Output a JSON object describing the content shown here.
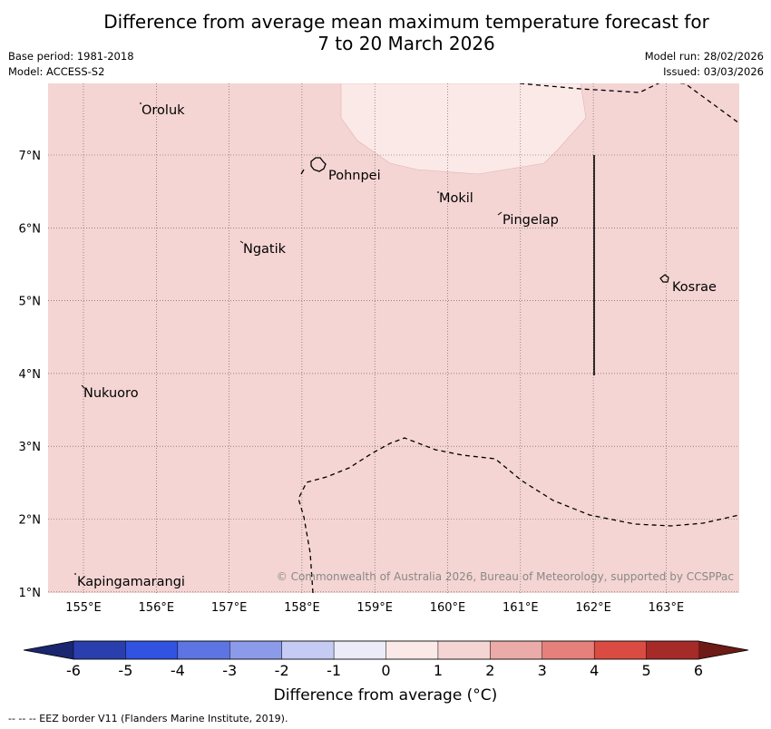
{
  "title": {
    "line1": "Difference from average mean maximum temperature forecast for",
    "line2": "7 to 20 March 2026"
  },
  "meta": {
    "base_period": "Base period: 1981-2018",
    "model": "Model: ACCESS-S2",
    "model_run": "Model run: 28/02/2026",
    "issued": "Issued: 03/03/2026"
  },
  "map": {
    "background_category": "1 to 2",
    "background_color": "#f4d5d3",
    "north_patch_category": "0 to 1",
    "north_patch_color": "#fbe9e8",
    "lon_labels": [
      "155°E",
      "156°E",
      "157°E",
      "158°E",
      "159°E",
      "160°E",
      "161°E",
      "162°E",
      "163°E"
    ],
    "lat_labels": [
      "7°N",
      "6°N",
      "5°N",
      "4°N",
      "3°N",
      "2°N",
      "1°N"
    ],
    "places": [
      {
        "id": "oroluk",
        "name": "Oroluk"
      },
      {
        "id": "pohnpei",
        "name": "Pohnpei"
      },
      {
        "id": "mokil",
        "name": "Mokil"
      },
      {
        "id": "pingelap",
        "name": "Pingelap"
      },
      {
        "id": "ngatik",
        "name": "Ngatik"
      },
      {
        "id": "kosrae",
        "name": "Kosrae"
      },
      {
        "id": "nukuoro",
        "name": "Nukuoro"
      },
      {
        "id": "kapingamarangi",
        "name": "Kapingamarangi"
      }
    ],
    "copyright": "© Commonwealth of Australia 2026, Bureau of Meteorology, supported by CCSPPac"
  },
  "colorbar": {
    "labels": [
      "-6",
      "-5",
      "-4",
      "-3",
      "-2",
      "-1",
      "0",
      "1",
      "2",
      "3",
      "4",
      "5",
      "6"
    ],
    "colors": [
      "#2a3fae",
      "#3252e0",
      "#5d74e3",
      "#8b9ae9",
      "#c5cbf3",
      "#ececf9",
      "#fbe9e8",
      "#f4d5d3",
      "#ebaba8",
      "#e5807b",
      "#da4b41",
      "#a52a28"
    ],
    "under_color": "#1b2670",
    "over_color": "#6e1a17",
    "title": "Difference from average (°C)"
  },
  "footnote": "--  --  -- EEZ border V11 (Flanders Marine Institute, 2019)."
}
